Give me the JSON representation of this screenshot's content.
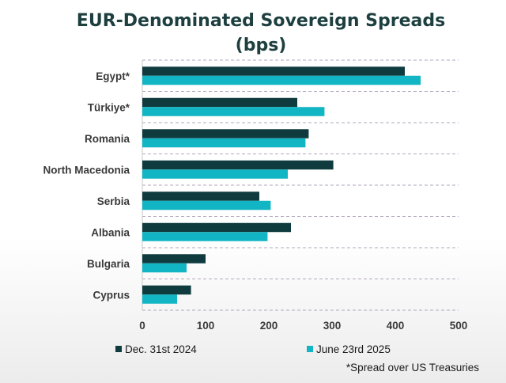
{
  "chart_data": {
    "type": "bar",
    "orientation": "horizontal",
    "title": "EUR-Denominated Sovereign Spreads",
    "subtitle": "(bps)",
    "categories": [
      "Egypt*",
      "Türkiye*",
      "Romania",
      "North Macedonia",
      "Serbia",
      "Albania",
      "Bulgaria",
      "Cyprus"
    ],
    "series": [
      {
        "name": "Dec. 31st 2024",
        "color": "#0f3b3f",
        "values": [
          415,
          245,
          263,
          302,
          185,
          235,
          100,
          77
        ]
      },
      {
        "name": "June 23rd 2025",
        "color": "#12b5c3",
        "values": [
          440,
          288,
          258,
          230,
          203,
          198,
          70,
          55
        ]
      }
    ],
    "xlim": [
      0,
      500
    ],
    "xticks": [
      0,
      100,
      200,
      300,
      400,
      500
    ],
    "grid": "horizontal dashed separators",
    "legend_position": "bottom",
    "footnote": "*Spread over US Treasuries"
  }
}
